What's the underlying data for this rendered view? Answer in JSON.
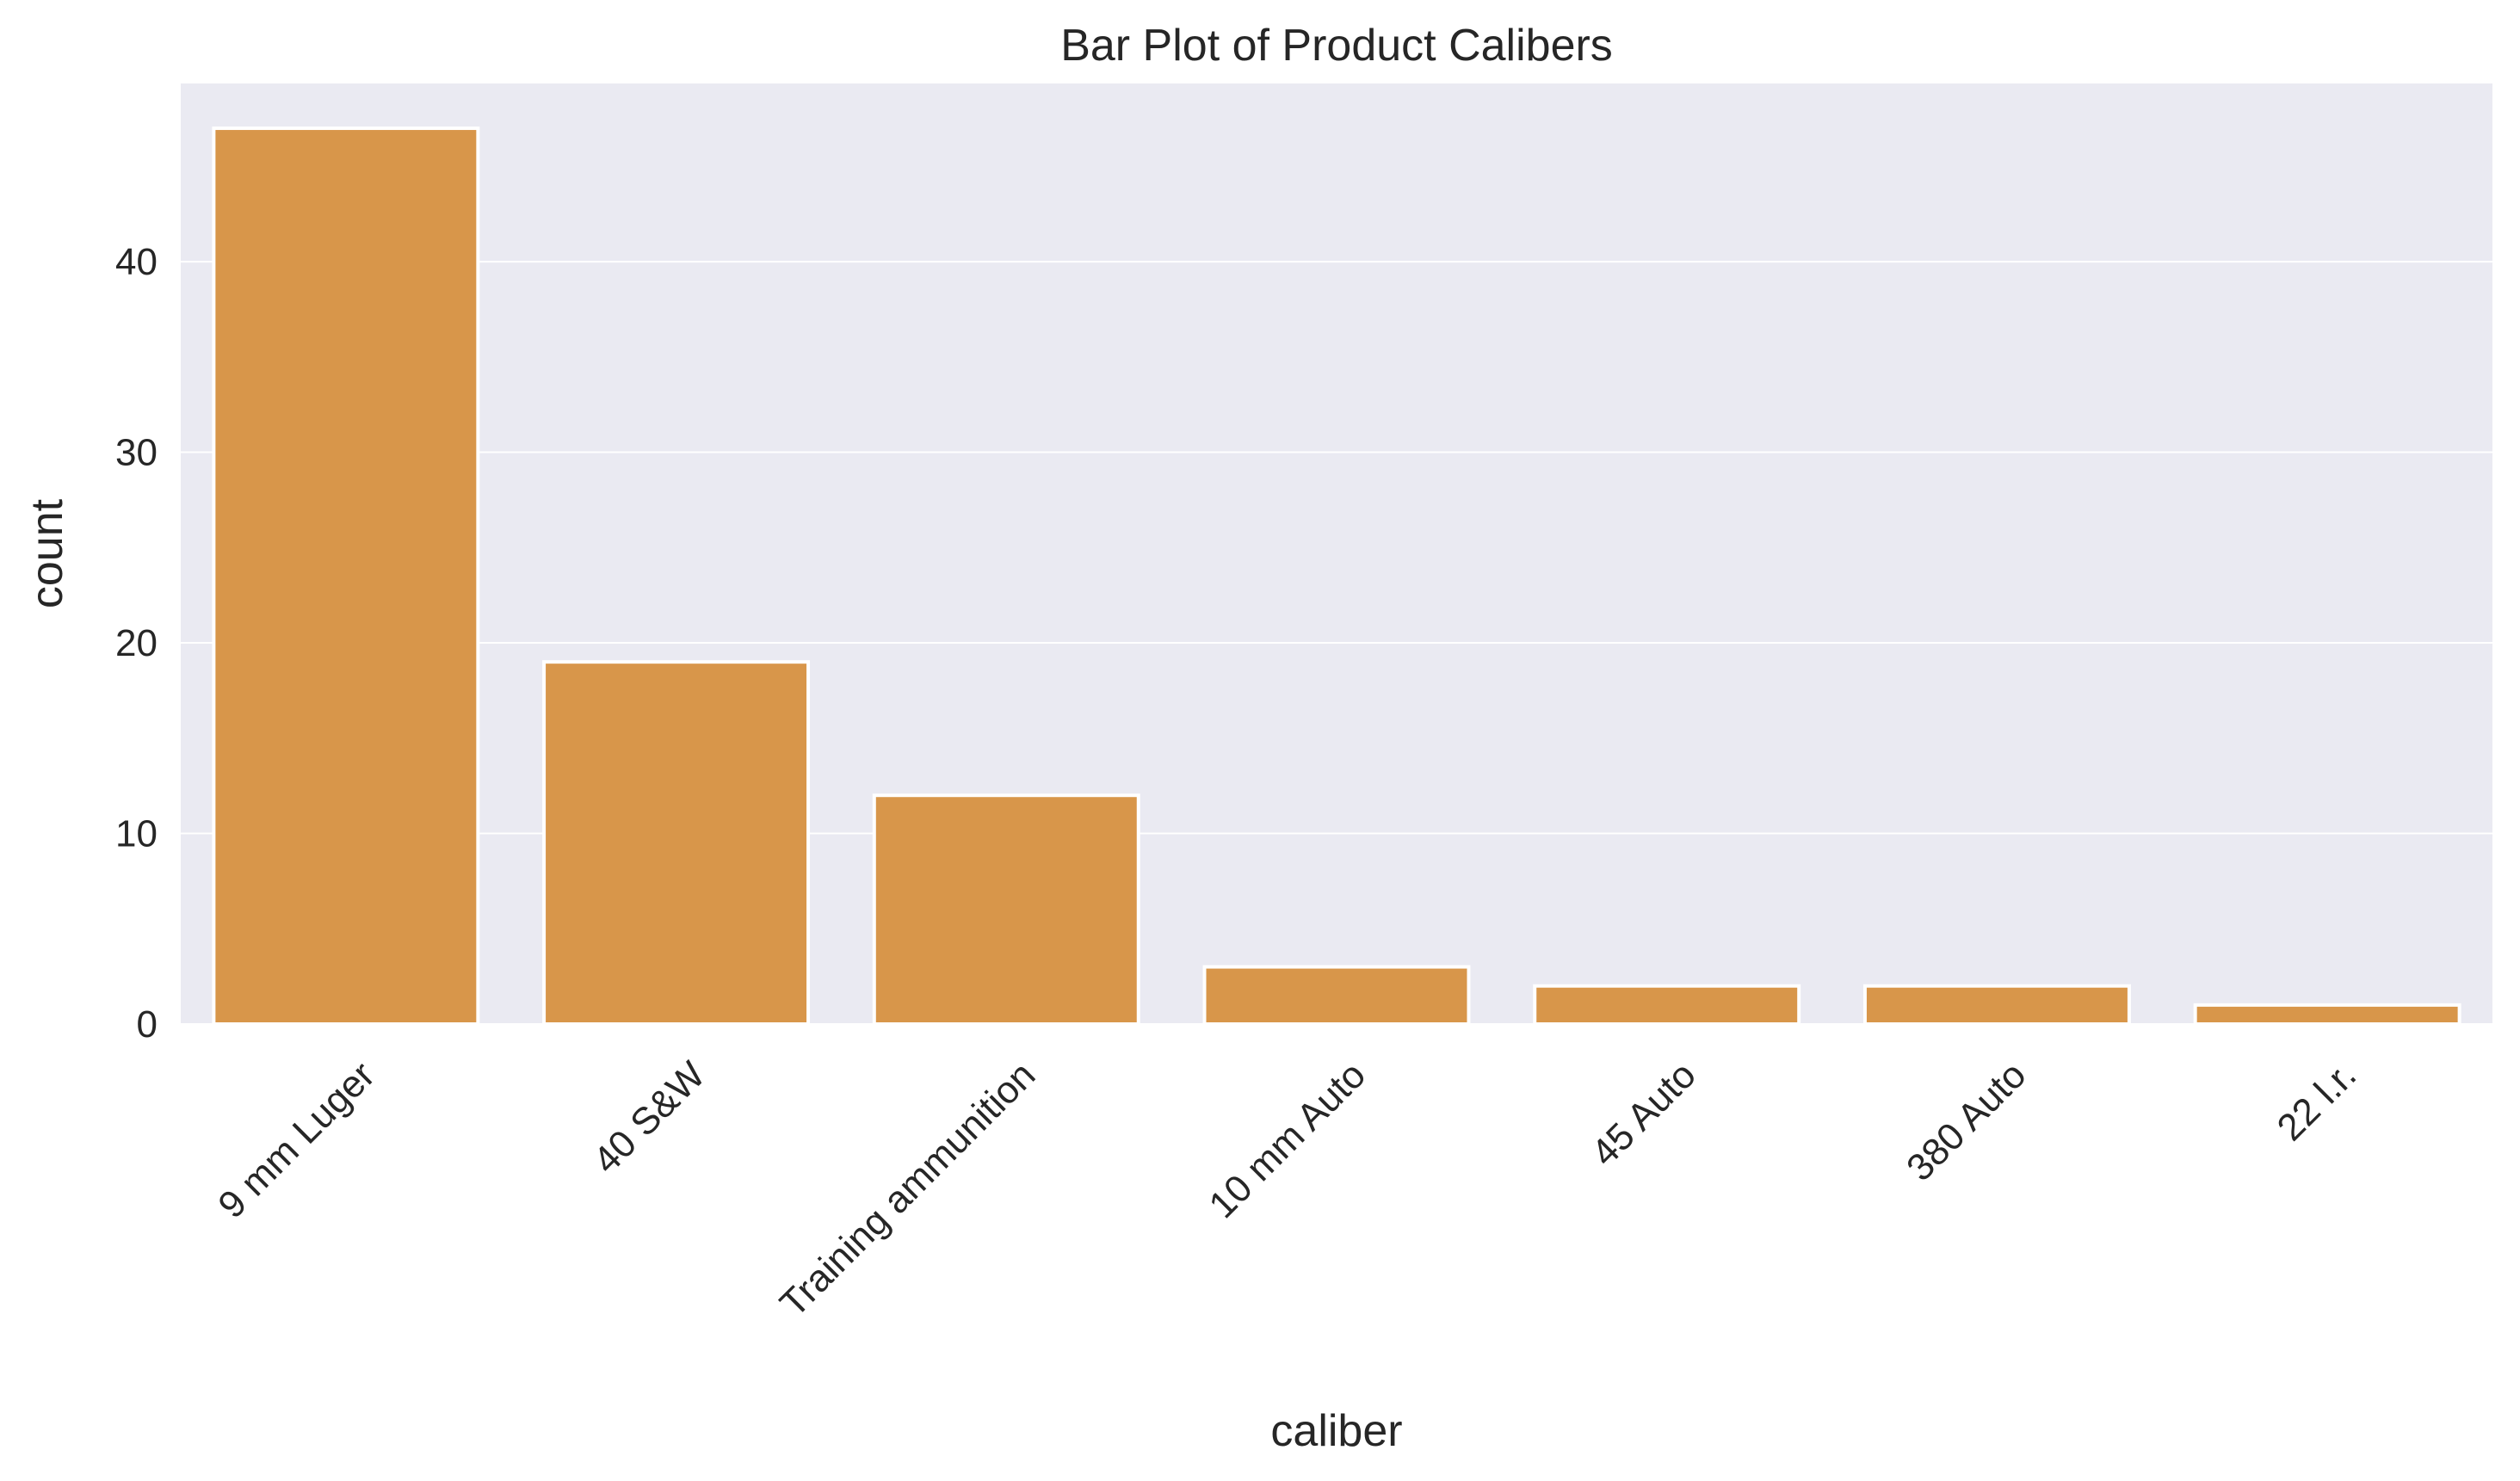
{
  "colors": {
    "background": "#ffffff",
    "plot_background": "#eaeaf2",
    "grid": "#ffffff",
    "bar": "#d8964a",
    "bar_edge": "#ffffff",
    "text": "#262626"
  },
  "chart_data": {
    "type": "bar",
    "title": "Bar Plot of Product Calibers",
    "xlabel": "caliber",
    "ylabel": "count",
    "categories": [
      "9 mm Luger",
      "40 S&W",
      "Training ammunition",
      "10 mm Auto",
      "45 Auto",
      "380 Auto",
      "22 l.r."
    ],
    "values": [
      47,
      19,
      12,
      3,
      2,
      2,
      1
    ],
    "ylim": [
      0,
      49.35
    ],
    "yticks": [
      0,
      10,
      20,
      30,
      40
    ],
    "grid": true,
    "x_tick_rotation_deg": 45,
    "legend": "none"
  }
}
